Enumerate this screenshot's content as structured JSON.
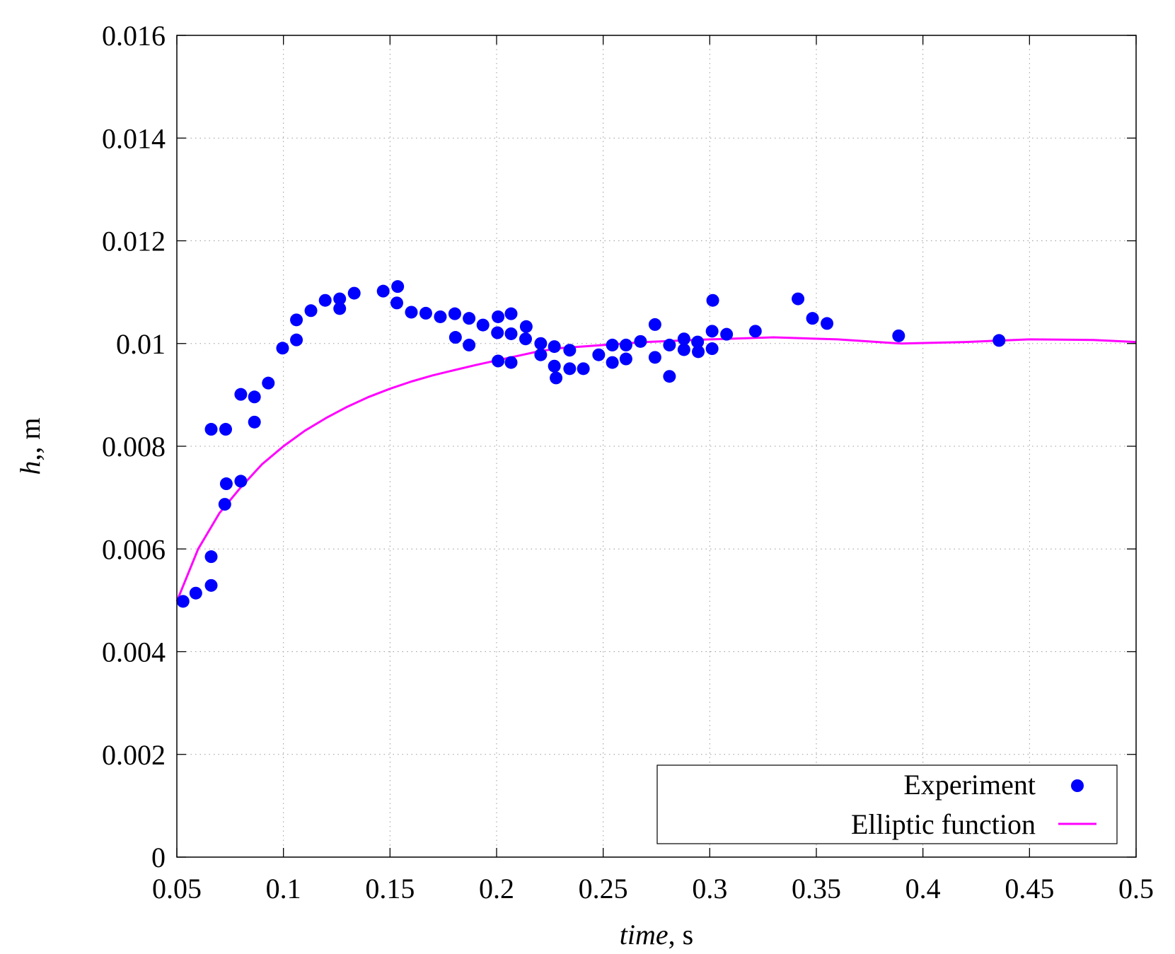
{
  "chart_data": {
    "type": "scatter",
    "xlabel": {
      "italic": "time",
      "rest": ", s"
    },
    "ylabel": {
      "italic": "h",
      "rest": ",, m"
    },
    "xlim": [
      0.05,
      0.5
    ],
    "ylim": [
      0,
      0.016
    ],
    "xticks": [
      0.05,
      0.1,
      0.15,
      0.2,
      0.25,
      0.3,
      0.35,
      0.4,
      0.45,
      0.5
    ],
    "xtick_labels": [
      "0.05",
      "0.1",
      "0.15",
      "0.2",
      "0.25",
      "0.3",
      "0.35",
      "0.4",
      "0.45",
      "0.5"
    ],
    "yticks": [
      0,
      0.002,
      0.004,
      0.006,
      0.008,
      0.01,
      0.012,
      0.014,
      0.016
    ],
    "ytick_labels": [
      "0",
      "0.002",
      "0.004",
      "0.006",
      "0.008",
      "0.01",
      "0.012",
      "0.014",
      "0.016"
    ],
    "grid": true,
    "legend_position": "bottom-right",
    "series": [
      {
        "name": "Experiment",
        "kind": "scatter",
        "color": "#0000ff",
        "x": [
          0.0529,
          0.0589,
          0.0661,
          0.0661,
          0.0661,
          0.0729,
          0.0732,
          0.0725,
          0.08,
          0.08,
          0.0864,
          0.0864,
          0.0929,
          0.0996,
          0.1061,
          0.1061,
          0.1129,
          0.1196,
          0.1264,
          0.1264,
          0.1332,
          0.1468,
          0.1536,
          0.1532,
          0.16,
          0.1668,
          0.1736,
          0.1804,
          0.1807,
          0.1871,
          0.1871,
          0.1936,
          0.2007,
          0.2004,
          0.2007,
          0.2068,
          0.2068,
          0.2068,
          0.2139,
          0.2136,
          0.2207,
          0.2207,
          0.2271,
          0.2271,
          0.2279,
          0.2343,
          0.2343,
          0.2407,
          0.2479,
          0.2543,
          0.2543,
          0.2607,
          0.2607,
          0.2675,
          0.2743,
          0.2743,
          0.2811,
          0.2811,
          0.2879,
          0.2879,
          0.2943,
          0.2946,
          0.3011,
          0.3011,
          0.3014,
          0.3079,
          0.3214,
          0.3414,
          0.3482,
          0.355,
          0.3886,
          0.4357
        ],
        "y": [
          0.00498,
          0.00514,
          0.00529,
          0.00585,
          0.00833,
          0.00833,
          0.00727,
          0.00687,
          0.00732,
          0.00901,
          0.00896,
          0.00847,
          0.00923,
          0.00991,
          0.01007,
          0.01046,
          0.01064,
          0.01084,
          0.01087,
          0.01068,
          0.01098,
          0.01102,
          0.01111,
          0.01079,
          0.01061,
          0.01059,
          0.01052,
          0.01058,
          0.01012,
          0.01049,
          0.00997,
          0.01036,
          0.01052,
          0.01021,
          0.00966,
          0.01058,
          0.01019,
          0.00963,
          0.01033,
          0.01009,
          0.01,
          0.00978,
          0.00994,
          0.00956,
          0.00933,
          0.00987,
          0.00951,
          0.00951,
          0.00978,
          0.00997,
          0.00963,
          0.00997,
          0.0097,
          0.01004,
          0.01037,
          0.00973,
          0.00997,
          0.00936,
          0.01009,
          0.00988,
          0.01003,
          0.00984,
          0.01024,
          0.0099,
          0.01084,
          0.01018,
          0.01024,
          0.01087,
          0.01049,
          0.01039,
          0.01015,
          0.01006
        ]
      },
      {
        "name": "Elliptic function",
        "kind": "line",
        "color": "#ff00ff",
        "x": [
          0.05,
          0.06,
          0.07,
          0.08,
          0.09,
          0.1,
          0.11,
          0.12,
          0.13,
          0.14,
          0.15,
          0.16,
          0.17,
          0.18,
          0.19,
          0.2,
          0.21,
          0.22,
          0.23,
          0.25,
          0.27,
          0.3,
          0.33,
          0.36,
          0.39,
          0.42,
          0.45,
          0.48,
          0.5
        ],
        "y": [
          0.00498,
          0.006,
          0.0067,
          0.0072,
          0.00765,
          0.008,
          0.0083,
          0.00855,
          0.00877,
          0.00896,
          0.00912,
          0.00926,
          0.00938,
          0.00948,
          0.00958,
          0.00967,
          0.00976,
          0.00985,
          0.00991,
          0.00997,
          0.01003,
          0.01008,
          0.01012,
          0.01008,
          0.01,
          0.01003,
          0.01008,
          0.01007,
          0.01003
        ]
      }
    ]
  }
}
